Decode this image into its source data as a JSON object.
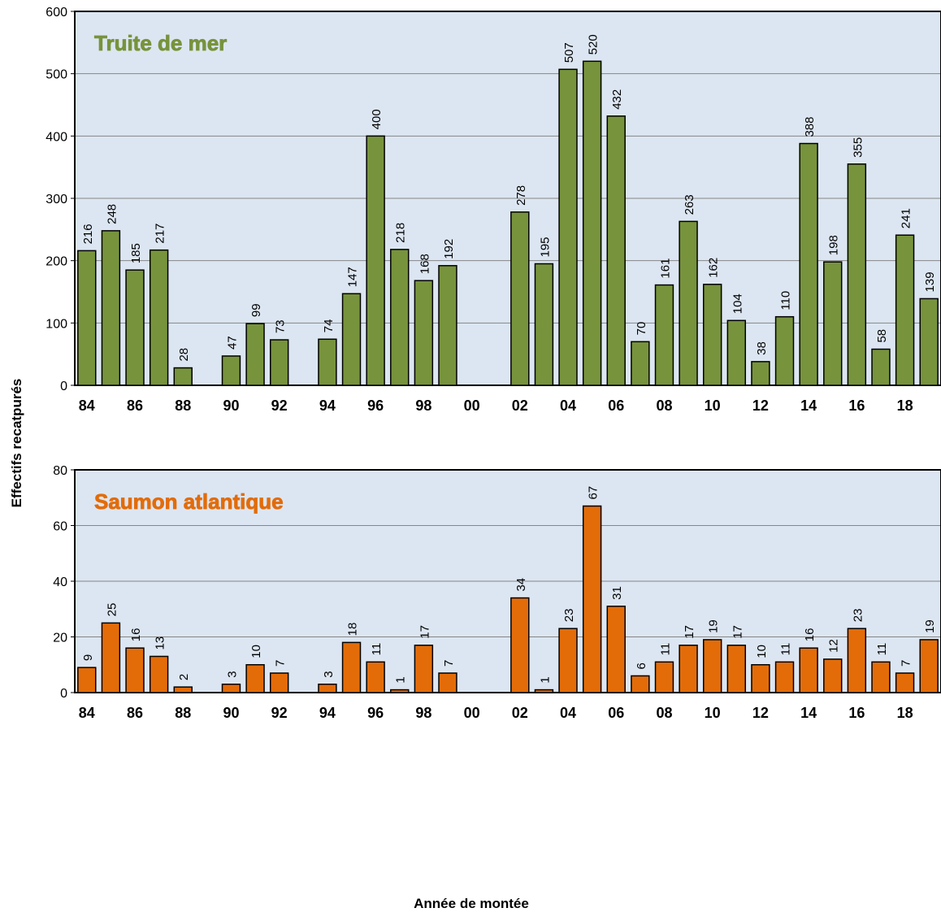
{
  "chart_data": [
    {
      "type": "bar",
      "title": "Truite de mer",
      "color": "#77933c",
      "title_color": "#77933c",
      "ylabel": "Effectifs recatpurés",
      "categories": [
        "84",
        null,
        "86",
        null,
        "88",
        null,
        "90",
        null,
        "92",
        null,
        "94",
        null,
        "96",
        null,
        "98",
        null,
        "00",
        null,
        "02",
        null,
        "04",
        null,
        "06",
        null,
        "08",
        null,
        "10",
        null,
        "12",
        null,
        "14",
        null,
        "16",
        null,
        "18",
        null
      ],
      "values": [
        216,
        248,
        185,
        217,
        28,
        null,
        47,
        99,
        73,
        null,
        74,
        147,
        400,
        218,
        168,
        192,
        null,
        null,
        278,
        195,
        507,
        520,
        432,
        70,
        161,
        263,
        162,
        104,
        38,
        110,
        388,
        198,
        355,
        58,
        241,
        139
      ],
      "ylim": [
        0,
        600
      ],
      "yticks": [
        0,
        100,
        200,
        300,
        400,
        500,
        600
      ],
      "grid": true
    },
    {
      "type": "bar",
      "title": "Saumon atlantique",
      "color": "#e36c09",
      "title_color": "#e36c09",
      "xlabel": "Année de montée",
      "categories": [
        "84",
        null,
        "86",
        null,
        "88",
        null,
        "90",
        null,
        "92",
        null,
        "94",
        null,
        "96",
        null,
        "98",
        null,
        "00",
        null,
        "02",
        null,
        "04",
        null,
        "06",
        null,
        "08",
        null,
        "10",
        null,
        "12",
        null,
        "14",
        null,
        "16",
        null,
        "18",
        null
      ],
      "values": [
        9,
        25,
        16,
        13,
        2,
        null,
        3,
        10,
        7,
        null,
        3,
        18,
        11,
        1,
        17,
        7,
        null,
        null,
        34,
        1,
        23,
        67,
        31,
        6,
        11,
        17,
        19,
        17,
        10,
        11,
        16,
        12,
        23,
        11,
        7,
        19
      ],
      "ylim": [
        0,
        80
      ],
      "yticks": [
        0,
        20,
        40,
        60,
        80
      ],
      "grid": true
    }
  ]
}
